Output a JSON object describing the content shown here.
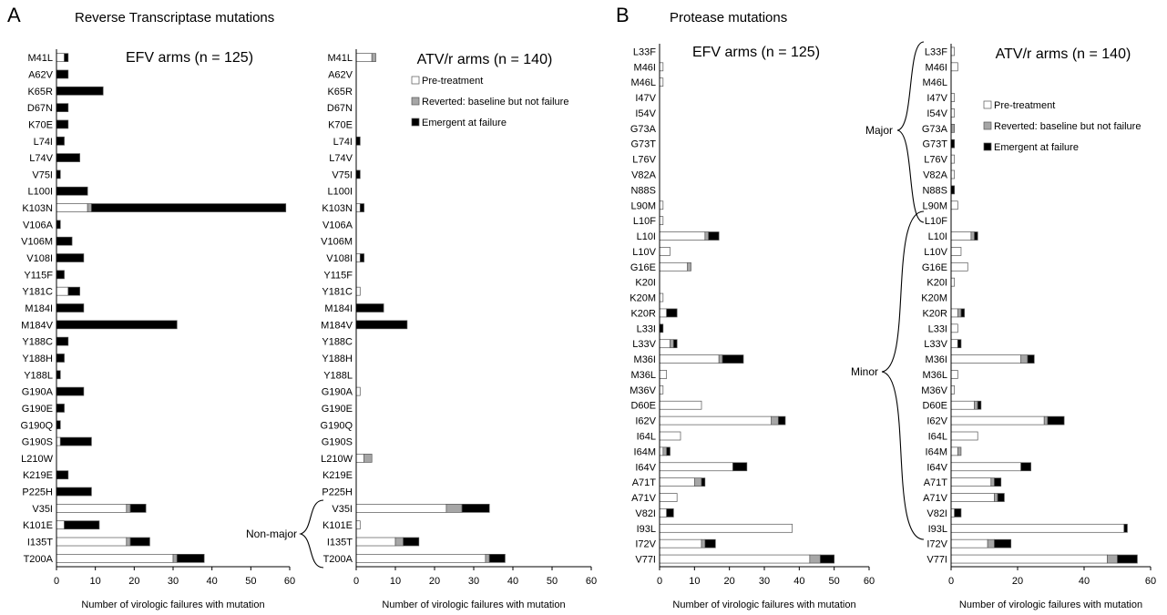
{
  "panels": {
    "A": {
      "letter": "A",
      "title": "Reverse Transcriptase mutations"
    },
    "B": {
      "letter": "B",
      "title": "Protease mutations"
    }
  },
  "legend_labels": {
    "pre": "Pre-treatment",
    "rev": "Reverted: baseline but not failure",
    "emg": "Emergent at failure"
  },
  "bracket_labels": {
    "nonmajor": "Non-major",
    "major": "Major",
    "minor": "Minor"
  },
  "colors": {
    "pre": "#ffffff",
    "rev": "#a6a6a6",
    "emg": "#000000",
    "outline": "#555555"
  },
  "chart_data": [
    {
      "type": "bar",
      "stacked": true,
      "orientation": "horizontal",
      "title": "EFV arms (n = 125)",
      "xlabel": "Number of virologic failures with mutation",
      "xlim": [
        0,
        60
      ],
      "xticks": [
        0,
        10,
        20,
        30,
        40,
        50,
        60
      ],
      "legend": false,
      "categories": [
        "M41L",
        "A62V",
        "K65R",
        "D67N",
        "K70E",
        "L74I",
        "L74V",
        "V75I",
        "L100I",
        "K103N",
        "V106A",
        "V106M",
        "V108I",
        "Y115F",
        "Y181C",
        "M184I",
        "M184V",
        "Y188C",
        "Y188H",
        "Y188L",
        "G190A",
        "G190E",
        "G190Q",
        "G190S",
        "L210W",
        "K219E",
        "P225H",
        "V35I",
        "K101E",
        "I135T",
        "T200A"
      ],
      "series": [
        {
          "name": "Pre-treatment",
          "values": [
            2,
            0,
            0,
            0,
            0,
            0,
            0,
            0,
            0,
            8,
            0,
            0,
            0,
            0,
            3,
            0,
            0,
            0,
            0,
            0,
            0,
            0,
            0,
            1,
            0,
            0,
            0,
            18,
            2,
            18,
            30
          ]
        },
        {
          "name": "Reverted: baseline but not failure",
          "values": [
            0,
            0,
            0,
            0,
            0,
            0,
            0,
            0,
            0,
            1,
            0,
            0,
            0,
            0,
            0,
            0,
            0,
            0,
            0,
            0,
            0,
            0,
            0,
            0,
            0,
            0,
            0,
            1,
            0,
            1,
            1
          ]
        },
        {
          "name": "Emergent at failure",
          "values": [
            1,
            3,
            12,
            3,
            3,
            2,
            6,
            1,
            8,
            50,
            1,
            4,
            7,
            2,
            3,
            7,
            31,
            3,
            2,
            1,
            7,
            2,
            1,
            8,
            0,
            3,
            9,
            4,
            9,
            5,
            7
          ]
        }
      ]
    },
    {
      "type": "bar",
      "stacked": true,
      "orientation": "horizontal",
      "title": "ATV/r arms (n = 140)",
      "xlabel": "Number of virologic failures with mutation",
      "xlim": [
        0,
        60
      ],
      "xticks": [
        0,
        10,
        20,
        30,
        40,
        50,
        60
      ],
      "legend": true,
      "categories": [
        "M41L",
        "A62V",
        "K65R",
        "D67N",
        "K70E",
        "L74I",
        "L74V",
        "V75I",
        "L100I",
        "K103N",
        "V106A",
        "V106M",
        "V108I",
        "Y115F",
        "Y181C",
        "M184I",
        "M184V",
        "Y188C",
        "Y188H",
        "Y188L",
        "G190A",
        "G190E",
        "G190Q",
        "G190S",
        "L210W",
        "K219E",
        "P225H",
        "V35I",
        "K101E",
        "I135T",
        "T200A"
      ],
      "series": [
        {
          "name": "Pre-treatment",
          "values": [
            4,
            0,
            0,
            0,
            0,
            0,
            0,
            0,
            0,
            1,
            0,
            0,
            1,
            0,
            1,
            0,
            0,
            0,
            0,
            0,
            1,
            0,
            0,
            0,
            2,
            0,
            0,
            23,
            1,
            10,
            33
          ]
        },
        {
          "name": "Reverted: baseline but not failure",
          "values": [
            1,
            0,
            0,
            0,
            0,
            0,
            0,
            0,
            0,
            0,
            0,
            0,
            0,
            0,
            0,
            0,
            0,
            0,
            0,
            0,
            0,
            0,
            0,
            0,
            2,
            0,
            0,
            4,
            0,
            2,
            1
          ]
        },
        {
          "name": "Emergent at failure",
          "values": [
            0,
            0,
            0,
            0,
            0,
            1,
            0,
            1,
            0,
            1,
            0,
            0,
            1,
            0,
            0,
            7,
            13,
            0,
            0,
            0,
            0,
            0,
            0,
            0,
            0,
            0,
            0,
            7,
            0,
            4,
            4
          ]
        }
      ]
    },
    {
      "type": "bar",
      "stacked": true,
      "orientation": "horizontal",
      "title": "EFV arms (n = 125)",
      "xlabel": "Number of virologic failures with mutation",
      "xlim": [
        0,
        60
      ],
      "xticks": [
        0,
        10,
        20,
        30,
        40,
        50,
        60
      ],
      "legend": false,
      "categories": [
        "L33F",
        "M46I",
        "M46L",
        "I47V",
        "I54V",
        "G73A",
        "G73T",
        "L76V",
        "V82A",
        "N88S",
        "L90M",
        "L10F",
        "L10I",
        "L10V",
        "G16E",
        "K20I",
        "K20M",
        "K20R",
        "L33I",
        "L33V",
        "M36I",
        "M36L",
        "M36V",
        "D60E",
        "I62V",
        "I64L",
        "I64M",
        "I64V",
        "A71T",
        "A71V",
        "V82I",
        "I93L",
        "I72V",
        "V77I"
      ],
      "series": [
        {
          "name": "Pre-treatment",
          "values": [
            0,
            1,
            1,
            0,
            0,
            0,
            0,
            0,
            0,
            0,
            1,
            1,
            13,
            3,
            8,
            0,
            1,
            2,
            0,
            3,
            17,
            2,
            1,
            12,
            32,
            6,
            1,
            21,
            10,
            5,
            2,
            38,
            12,
            43
          ]
        },
        {
          "name": "Reverted: baseline but not failure",
          "values": [
            0,
            0,
            0,
            0,
            0,
            0,
            0,
            0,
            0,
            0,
            0,
            0,
            1,
            0,
            1,
            0,
            0,
            0,
            0,
            1,
            1,
            0,
            0,
            0,
            2,
            0,
            1,
            0,
            2,
            0,
            0,
            0,
            1,
            3
          ]
        },
        {
          "name": "Emergent at failure",
          "values": [
            0,
            0,
            0,
            0,
            0,
            0,
            0,
            0,
            0,
            0,
            0,
            0,
            3,
            0,
            0,
            0,
            0,
            3,
            1,
            1,
            6,
            0,
            0,
            0,
            2,
            0,
            1,
            4,
            1,
            0,
            2,
            0,
            3,
            4
          ]
        }
      ]
    },
    {
      "type": "bar",
      "stacked": true,
      "orientation": "horizontal",
      "title": "ATV/r arms (n = 140)",
      "xlabel": "Number of virologic failures with mutation",
      "xlim": [
        0,
        60
      ],
      "xticks": [
        0,
        20,
        40,
        60
      ],
      "legend": true,
      "categories": [
        "L33F",
        "M46I",
        "M46L",
        "I47V",
        "I54V",
        "G73A",
        "G73T",
        "L76V",
        "V82A",
        "N88S",
        "L90M",
        "L10F",
        "L10I",
        "L10V",
        "G16E",
        "K20I",
        "K20M",
        "K20R",
        "L33I",
        "L33V",
        "M36I",
        "M36L",
        "M36V",
        "D60E",
        "I62V",
        "I64L",
        "I64M",
        "I64V",
        "A71T",
        "A71V",
        "V82I",
        "I93L",
        "I72V",
        "V77I"
      ],
      "series": [
        {
          "name": "Pre-treatment",
          "values": [
            1,
            2,
            0,
            1,
            1,
            0,
            0,
            1,
            1,
            0,
            2,
            0,
            6,
            3,
            5,
            1,
            0,
            2,
            2,
            2,
            21,
            2,
            1,
            7,
            28,
            8,
            2,
            21,
            12,
            13,
            1,
            52,
            11,
            47
          ]
        },
        {
          "name": "Reverted: baseline but not failure",
          "values": [
            0,
            0,
            0,
            0,
            0,
            1,
            0,
            0,
            0,
            0,
            0,
            0,
            1,
            0,
            0,
            0,
            0,
            1,
            0,
            0,
            2,
            0,
            0,
            1,
            1,
            0,
            1,
            0,
            1,
            1,
            0,
            0,
            2,
            3
          ]
        },
        {
          "name": "Emergent at failure",
          "values": [
            0,
            0,
            0,
            0,
            0,
            0,
            1,
            0,
            0,
            1,
            0,
            0,
            1,
            0,
            0,
            0,
            0,
            1,
            0,
            1,
            2,
            0,
            0,
            1,
            5,
            0,
            0,
            3,
            2,
            2,
            2,
            1,
            5,
            6
          ]
        }
      ]
    }
  ]
}
